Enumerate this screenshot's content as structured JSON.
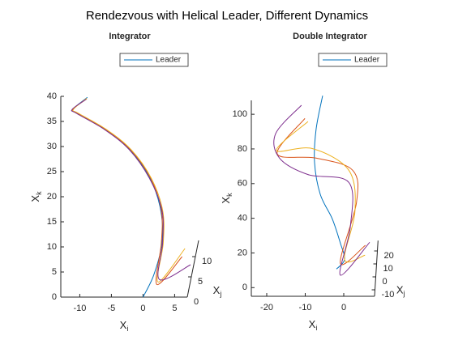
{
  "title": "Rendezvous with Helical Leader, Different Dynamics",
  "chart_data": [
    {
      "type": "line3d",
      "title": "Integrator",
      "legend": "north-east",
      "xlabel": {
        "base": "X",
        "sub": "i"
      },
      "ylabel": {
        "base": "X",
        "sub": "j"
      },
      "zlabel": {
        "base": "X",
        "sub": "k"
      },
      "xlim": [
        -13,
        7
      ],
      "ylim": [
        0,
        14
      ],
      "zlim": [
        0,
        40
      ],
      "xticks": [
        -10,
        -5,
        0,
        5
      ],
      "yticks": [
        0,
        5,
        10
      ],
      "zticks": [
        0,
        5,
        10,
        15,
        20,
        25,
        30,
        35,
        40
      ],
      "series": [
        {
          "name": "Leader",
          "color": "#0072BD",
          "x": [
            0,
            1.7,
            3,
            2.8,
            1.1,
            -2.1,
            -6,
            -10.4,
            -11.1,
            -8.8
          ],
          "y": [
            0,
            0,
            0,
            0,
            0,
            0,
            0,
            0,
            0,
            0
          ],
          "z": [
            0,
            4.4,
            10.8,
            17.3,
            23.7,
            29.4,
            33.4,
            36.6,
            37.4,
            39.8
          ]
        },
        {
          "color": "#D95319",
          "x": [
            4.9,
            2.2,
            2.9,
            2.9,
            1.2,
            -2.0,
            -5.9,
            -10.3,
            -11.1,
            -8.9
          ],
          "y": [
            10,
            0,
            0,
            0,
            0,
            0,
            0,
            0,
            0,
            0
          ],
          "z": [
            0,
            2.5,
            10.8,
            17.3,
            23.7,
            29.4,
            33.4,
            36.6,
            37.4,
            39.5
          ]
        },
        {
          "color": "#EDB120",
          "x": [
            5.1,
            2.4,
            3.2,
            3.1,
            1.3,
            -1.9,
            -5.8,
            -10.2,
            -11.0,
            -8.9
          ],
          "y": [
            12,
            0,
            0,
            0,
            0,
            0,
            0,
            0,
            0,
            0
          ],
          "z": [
            0,
            3,
            10.8,
            17.3,
            23.7,
            29.4,
            33.4,
            36.6,
            37.4,
            39.6
          ]
        },
        {
          "color": "#7E2F8E",
          "x": [
            6.5,
            2.6,
            3.1,
            3.0,
            1.0,
            -2.2,
            -6.1,
            -10.5,
            -11.2,
            -9.0
          ],
          "y": [
            8,
            0,
            0,
            0,
            0,
            0,
            0,
            0,
            0,
            0
          ],
          "z": [
            0,
            3.5,
            10.8,
            17.3,
            23.7,
            29.4,
            33.4,
            36.6,
            37.4,
            39.4
          ]
        }
      ]
    },
    {
      "type": "line3d",
      "title": "Double Integrator",
      "legend": "north-east",
      "xlabel": {
        "base": "X",
        "sub": "i"
      },
      "ylabel": {
        "base": "X",
        "sub": "j"
      },
      "zlabel": {
        "base": "X",
        "sub": "k"
      },
      "xlim": [
        -24,
        8
      ],
      "ylim": [
        -15,
        28
      ],
      "zlim": [
        -5,
        108
      ],
      "xticks": [
        -20,
        -10,
        0
      ],
      "yticks": [
        -10,
        0,
        10,
        20
      ],
      "zticks": [
        0,
        20,
        40,
        60,
        80,
        100
      ],
      "series": [
        {
          "name": "Leader",
          "color": "#0072BD",
          "x": [
            -5.8,
            -7.5,
            -7.9,
            -6.4,
            -3.3,
            -1.2,
            -0.1,
            -2.2
          ],
          "y": [
            0,
            0,
            0,
            0,
            0,
            0,
            0,
            0
          ],
          "z": [
            99.5,
            80,
            61,
            42.5,
            28.5,
            14.5,
            5,
            -0.5
          ]
        },
        {
          "color": "#D95319",
          "x": [
            -10.4,
            -17.6,
            -7.5,
            2,
            3,
            -1.2,
            5
          ],
          "y": [
            0,
            0,
            0,
            0,
            0,
            0,
            15
          ],
          "z": [
            86.4,
            66,
            63.5,
            56.5,
            38,
            2.8,
            2
          ]
        },
        {
          "color": "#EDB120",
          "x": [
            -9.6,
            -17.8,
            -8.5,
            1,
            2.6,
            -0.1,
            5
          ],
          "y": [
            0,
            0,
            0,
            0,
            0,
            0,
            10
          ],
          "z": [
            84.6,
            68,
            69,
            56.5,
            33,
            5,
            0
          ]
        },
        {
          "color": "#7E2F8E",
          "x": [
            -11.3,
            -18,
            -17,
            -9.6,
            1,
            1.4,
            -1.2,
            6
          ],
          "y": [
            0,
            0,
            0,
            0,
            0,
            0,
            0,
            20
          ],
          "z": [
            94,
            77.6,
            63.5,
            54,
            49.5,
            24,
            -4,
            0
          ]
        }
      ]
    }
  ]
}
